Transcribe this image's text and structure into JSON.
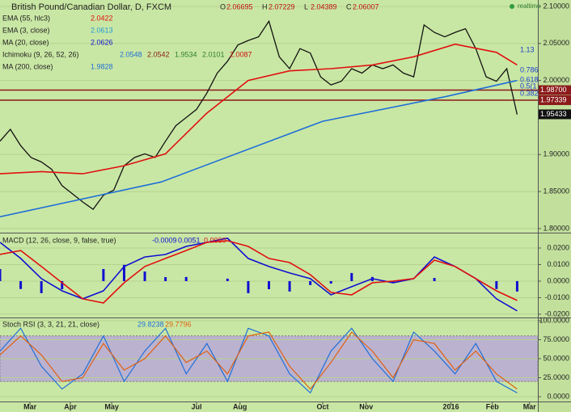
{
  "chart_data": [
    {
      "type": "line",
      "title": "British Pound/Canadian Dollar, D, FXCM",
      "ohlc": [
        {
          "name": "O",
          "value": 2.06695
        },
        {
          "name": "H",
          "value": 2.07229
        },
        {
          "name": "L",
          "value": 2.04389
        },
        {
          "name": "C",
          "value": 2.06007
        }
      ],
      "status": "realtime",
      "indicators": [
        {
          "name": "EMA (55, hlc3)",
          "values": [
            2.0422
          ],
          "colors": [
            "#e01010"
          ]
        },
        {
          "name": "EMA (3, close)",
          "values": [
            2.0613
          ],
          "colors": [
            "#1f9bd8"
          ]
        },
        {
          "name": "MA (20, close)",
          "values": [
            2.0626
          ],
          "colors": [
            "#1010d0"
          ]
        },
        {
          "name": "Ichimoku (9, 26, 52, 26)",
          "values": [
            2.0548,
            2.0542,
            1.9534,
            2.0101,
            2.0087
          ],
          "colors": [
            "#1f6fd8",
            "#8b1a1a",
            "#2e7d32",
            "#2e7d32",
            "#d01010"
          ]
        },
        {
          "name": "MA (200, close)",
          "values": [
            1.9828
          ],
          "colors": [
            "#1f6fd8"
          ]
        }
      ],
      "series": [
        {
          "color": "#111111",
          "x": [
            0,
            5,
            10,
            15,
            20,
            25,
            30,
            35,
            40,
            45,
            50,
            55,
            60,
            65,
            70,
            75,
            80,
            85,
            90,
            95,
            100,
            105,
            110,
            115,
            120,
            125,
            130,
            135,
            140,
            145,
            150,
            155,
            160,
            165,
            170,
            175,
            180,
            185,
            190,
            195,
            200,
            205,
            210,
            215,
            220,
            225,
            230,
            235,
            240,
            245,
            250
          ],
          "values": [
            1.918,
            1.934,
            1.912,
            1.896,
            1.89,
            1.88,
            1.858,
            1.847,
            1.836,
            1.826,
            1.845,
            1.852,
            1.885,
            1.896,
            1.901,
            1.896,
            1.918,
            1.939,
            1.95,
            1.961,
            1.983,
            2.01,
            2.026,
            2.048,
            2.054,
            2.059,
            2.08,
            2.032,
            2.016,
            2.043,
            2.037,
            2.005,
            1.994,
            1.999,
            2.016,
            2.01,
            2.021,
            2.016,
            2.021,
            2.01,
            2.005,
            2.075,
            2.065,
            2.059,
            2.065,
            2.07,
            2.043,
            2.005,
            1.999,
            2.016,
            1.954
          ]
        },
        {
          "color": "#e01010",
          "x": [
            0,
            20,
            40,
            60,
            80,
            100,
            120,
            140,
            160,
            180,
            200,
            220,
            240,
            250
          ],
          "values": [
            1.874,
            1.877,
            1.874,
            1.885,
            1.901,
            1.956,
            2.0,
            2.013,
            2.016,
            2.021,
            2.032,
            2.049,
            2.038,
            2.021
          ]
        },
        {
          "color": "#1f6fd8",
          "x": [
            0,
            78,
            156,
            215,
            250
          ],
          "values": [
            1.816,
            1.863,
            1.945,
            1.978,
            2.0
          ]
        }
      ],
      "levels": [
        {
          "value": 1.987,
          "label": "1.98700",
          "color": "#8b1a1a"
        },
        {
          "value": 1.97339,
          "label": "1.97339",
          "color": "#8b1a1a"
        }
      ],
      "last_price": 1.95433,
      "annotations": [
        "1.13",
        "0.786",
        "0.618",
        "0.5(1",
        "0.382"
      ],
      "xlim": [
        0,
        260
      ],
      "xticks": [
        {
          "value": 14.5,
          "label": "Mar"
        },
        {
          "value": 34,
          "label": "Apr"
        },
        {
          "value": 54,
          "label": "May"
        },
        {
          "value": 95,
          "label": "Jul"
        },
        {
          "value": 116,
          "label": "Aug"
        },
        {
          "value": 156,
          "label": "Oct"
        },
        {
          "value": 177,
          "label": "Nov"
        },
        {
          "value": 218,
          "label": "2016"
        },
        {
          "value": 238,
          "label": "Feb"
        },
        {
          "value": 256,
          "label": "Mar"
        }
      ],
      "ylim": [
        1.7956,
        2.1087
      ],
      "yticks": [
        {
          "value": 2.1,
          "label": "2.10000"
        },
        {
          "value": 2.05,
          "label": "2.05000"
        },
        {
          "value": 2.0,
          "label": "2.00000"
        },
        {
          "value": 1.9,
          "label": "1.90000"
        },
        {
          "value": 1.85,
          "label": "1.85000"
        },
        {
          "value": 1.8,
          "label": "1.80000"
        }
      ]
    },
    {
      "type": "macd",
      "title": "MACD (12, 26, close, 9, false, true)",
      "readout": [
        {
          "value": -0.0009,
          "label": "-0.0009",
          "color": "#1010d0"
        },
        {
          "value": 0.0051,
          "label": "0.0051",
          "color": "#1010d0"
        },
        {
          "value": 0.006,
          "label": "0.0060",
          "color": "#e01010"
        }
      ],
      "x": [
        0,
        10,
        20,
        30,
        40,
        50,
        60,
        70,
        80,
        90,
        100,
        110,
        120,
        130,
        140,
        150,
        160,
        170,
        180,
        190,
        200,
        210,
        220,
        230,
        240,
        250
      ],
      "series": [
        {
          "color": "#1010d0",
          "values": [
            0.0234,
            0.0137,
            0.0015,
            -0.0059,
            -0.0107,
            -0.0059,
            0.0088,
            0.0146,
            0.0161,
            0.021,
            0.0234,
            0.0259,
            0.0137,
            0.0088,
            0.0049,
            0.0015,
            -0.0083,
            -0.0034,
            0.0015,
            -0.001,
            0.0015,
            0.0146,
            0.0088,
            0.0015,
            -0.0107,
            -0.018
          ]
        },
        {
          "color": "#e01010",
          "values": [
            0.0161,
            0.0185,
            0.0088,
            -0.001,
            -0.0107,
            -0.0132,
            -0.001,
            0.0088,
            0.0137,
            0.0185,
            0.0234,
            0.0244,
            0.021,
            0.0137,
            0.0112,
            0.0039,
            -0.0068,
            -0.0083,
            -0.001,
            0,
            0.0015,
            0.0127,
            0.0088,
            0.0015,
            -0.0059,
            -0.0117
          ]
        }
      ],
      "histogram": {
        "color": "#1010d0",
        "values": [
          0.0073,
          -0.0048,
          -0.0073,
          -0.0049,
          0,
          0.0073,
          0.0098,
          0.0058,
          0.0024,
          0.0025,
          0,
          0.0015,
          -0.0073,
          -0.0049,
          -0.0063,
          -0.0024,
          -0.0015,
          0.0049,
          0.0025,
          -0.001,
          0,
          0.0019,
          0,
          0,
          -0.0048,
          -0.0063
        ]
      },
      "ylim": [
        -0.0215,
        0.0283
      ],
      "yticks": [
        {
          "value": 0.02,
          "label": "0.0200"
        },
        {
          "value": 0.01,
          "label": "0.0100"
        },
        {
          "value": 0,
          "label": "0.0000"
        },
        {
          "value": -0.01,
          "label": "-0.0100"
        },
        {
          "value": -0.02,
          "label": "-0.0200"
        }
      ]
    },
    {
      "type": "stoch",
      "title": "Stoch RSI (3, 3, 21, 21, close)",
      "readout": [
        {
          "value": 29.8238,
          "color": "#1f6fd8"
        },
        {
          "value": 29.7796,
          "color": "#e06010"
        }
      ],
      "x": [
        0,
        10,
        20,
        30,
        40,
        50,
        60,
        70,
        80,
        90,
        100,
        110,
        120,
        130,
        140,
        150,
        160,
        170,
        180,
        190,
        200,
        210,
        220,
        230,
        240,
        250
      ],
      "series": [
        {
          "color": "#1f6fd8",
          "values": [
            60,
            90,
            40,
            10,
            30,
            80,
            20,
            60,
            90,
            30,
            70,
            20,
            90,
            80,
            30,
            5,
            60,
            90,
            50,
            20,
            85,
            60,
            30,
            70,
            20,
            5
          ]
        },
        {
          "color": "#e06010",
          "values": [
            55,
            80,
            55,
            20,
            25,
            70,
            35,
            50,
            80,
            45,
            60,
            30,
            80,
            85,
            40,
            10,
            45,
            85,
            60,
            25,
            75,
            70,
            35,
            60,
            30,
            10
          ]
        }
      ],
      "band": [
        20,
        80
      ],
      "ylim": [
        -5.3,
        103.2
      ],
      "yticks": [
        {
          "value": 100,
          "label": "100.0000"
        },
        {
          "value": 75,
          "label": "75.0000"
        },
        {
          "value": 50,
          "label": "50.0000"
        },
        {
          "value": 25,
          "label": "25.0000"
        },
        {
          "value": 0,
          "label": "0.0000"
        }
      ]
    }
  ]
}
